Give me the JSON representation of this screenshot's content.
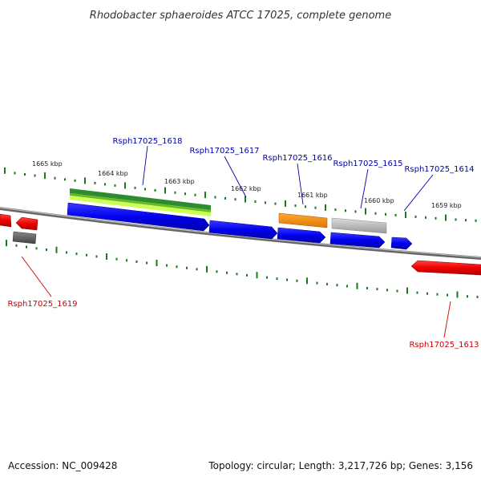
{
  "title": "Rhodobacter sphaeroides ATCC 17025, complete genome",
  "footer": {
    "accession": "Accession: NC_009428",
    "summary": "Topology: circular; Length: 3,217,726 bp; Genes: 3,156"
  },
  "ticks": [
    {
      "label": "1665 kbp"
    },
    {
      "label": "1664 kbp"
    },
    {
      "label": "1663 kbp"
    },
    {
      "label": "1662 kbp"
    },
    {
      "label": "1661 kbp"
    },
    {
      "label": "1660 kbp"
    },
    {
      "label": "1659 kbp"
    }
  ],
  "genes": [
    {
      "id": "Rsph17025_1618",
      "strand": "+",
      "color": "#0000ee"
    },
    {
      "id": "Rsph17025_1617",
      "strand": "+",
      "color": "#0000ee"
    },
    {
      "id": "Rsph17025_1616",
      "strand": "+",
      "color": "#0000ee"
    },
    {
      "id": "Rsph17025_1615",
      "strand": "+",
      "color": "#0000ee"
    },
    {
      "id": "Rsph17025_1614",
      "strand": "+",
      "color": "#0000ee"
    },
    {
      "id": "Rsph17025_1619",
      "strand": "-",
      "color": "#ee0000"
    },
    {
      "id": "Rsph17025_1613",
      "strand": "-",
      "color": "#ee0000"
    }
  ],
  "colors": {
    "forward_gene": "#0000ee",
    "reverse_gene": "#ee0000",
    "forward_label": "#0000aa",
    "reverse_label": "#cc0000",
    "tick": "#1a7a1a",
    "backbone": "#888888",
    "feature_green_dark": "#2e8b2e",
    "feature_green_light": "#aaee44",
    "feature_orange": "#ff8800",
    "feature_gray": "#bbbbbb",
    "feature_dark_gray": "#666666"
  }
}
